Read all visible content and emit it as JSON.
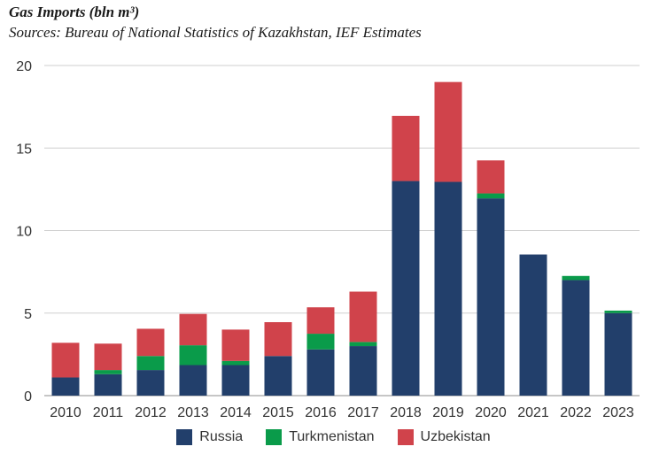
{
  "chart_data": {
    "type": "bar",
    "stacked": true,
    "title": "Gas Imports (bln m³)",
    "subtitle": "Sources: Bureau of National Statistics of Kazakhstan, IEF Estimates",
    "categories": [
      "2010",
      "2011",
      "2012",
      "2013",
      "2014",
      "2015",
      "2016",
      "2017",
      "2018",
      "2019",
      "2020",
      "2021",
      "2022",
      "2023"
    ],
    "ylim": [
      0,
      20
    ],
    "yticks": [
      0,
      5,
      10,
      15,
      20
    ],
    "grid": true,
    "legend_position": "bottom",
    "series": [
      {
        "name": "Russia",
        "color": "#223f6b",
        "values": [
          1.1,
          1.3,
          1.55,
          1.85,
          1.85,
          2.4,
          2.8,
          3.0,
          13.0,
          12.95,
          11.95,
          8.55,
          7.0,
          5.0
        ]
      },
      {
        "name": "Turkmenistan",
        "color": "#0a9b4a",
        "values": [
          0.0,
          0.25,
          0.85,
          1.2,
          0.25,
          0.0,
          0.95,
          0.25,
          0.0,
          0.0,
          0.3,
          0.0,
          0.25,
          0.15
        ]
      },
      {
        "name": "Uzbekistan",
        "color": "#d0434b",
        "values": [
          2.1,
          1.6,
          1.65,
          1.9,
          1.9,
          2.05,
          1.6,
          3.05,
          3.95,
          6.05,
          2.0,
          0.0,
          0.0,
          0.0
        ]
      }
    ]
  }
}
